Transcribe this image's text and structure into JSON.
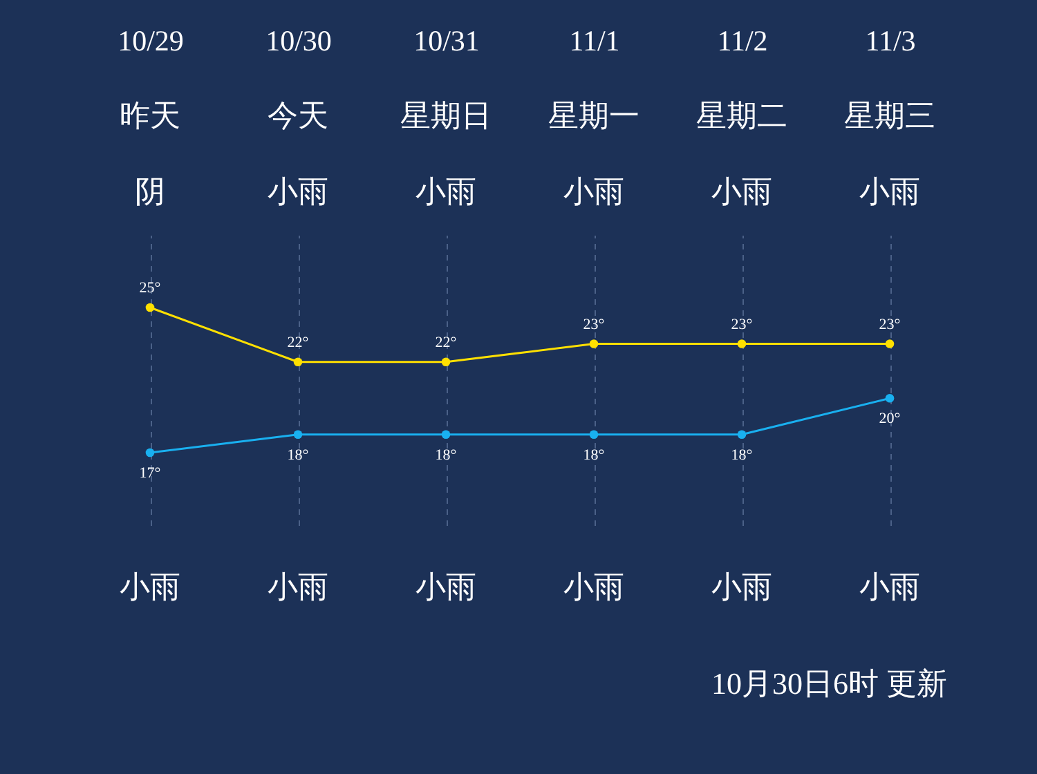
{
  "chart_data": {
    "type": "line",
    "categories": [
      "10/29",
      "10/30",
      "10/31",
      "11/1",
      "11/2",
      "11/3"
    ],
    "series": [
      {
        "color": "#ffe000",
        "values": [
          25,
          22,
          22,
          23,
          23,
          23
        ],
        "value_labels": [
          "25°",
          "22°",
          "22°",
          "23°",
          "23°",
          "23°"
        ]
      },
      {
        "color": "#19b0f0",
        "values": [
          17,
          18,
          18,
          18,
          18,
          20
        ],
        "value_labels": [
          "17°",
          "18°",
          "18°",
          "18°",
          "18°",
          "20°"
        ]
      }
    ],
    "ylim": [
      13,
      29
    ],
    "tick_labels": "x",
    "grid": "x",
    "marker": "circle",
    "line_style": "solid",
    "annotations": [
      "昨天",
      "今天",
      "星期日",
      "星期一",
      "星期二",
      "星期三",
      "阴",
      "小雨",
      "小雨",
      "小雨",
      "小雨",
      "小雨",
      "小雨",
      "小雨",
      "小雨",
      "小雨",
      "小雨",
      "小雨",
      "10月30日6时 更新"
    ]
  }
}
